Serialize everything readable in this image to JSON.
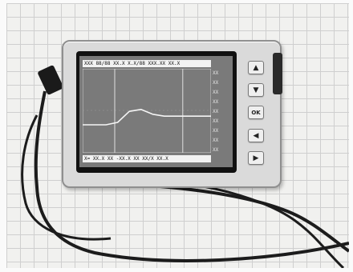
{
  "device": {
    "status_top": "XXX 88/88 XX.X X.X/88 XXX.XX XX.X",
    "status_bottom": "X= XX.X XX -XX.X XX XX/X XX.X",
    "tick_labels": [
      "XX",
      "XX",
      "XX",
      "XX",
      "XX",
      "XX",
      "XX",
      "XX",
      "XX"
    ],
    "buttons": {
      "up_icon": "triangle-up",
      "down_icon": "triangle-down",
      "ok_label": "OK",
      "left_icon": "triangle-left",
      "right_icon": "triangle-right"
    },
    "waveform": {
      "description_free": true,
      "levels": [
        0.0,
        0.0,
        0.0,
        0.05,
        0.28,
        0.32,
        0.22,
        0.18,
        0.18,
        0.18,
        0.18,
        0.18
      ],
      "cursor_positions": [
        0.25,
        0.78
      ]
    }
  },
  "colors": {
    "screen_bg": "#7a7a7a",
    "trace": "#f5f5f5",
    "status_bar": "#f2f2f2",
    "device_shell": "#dadada",
    "grid_paper": "#f1f1ef"
  }
}
